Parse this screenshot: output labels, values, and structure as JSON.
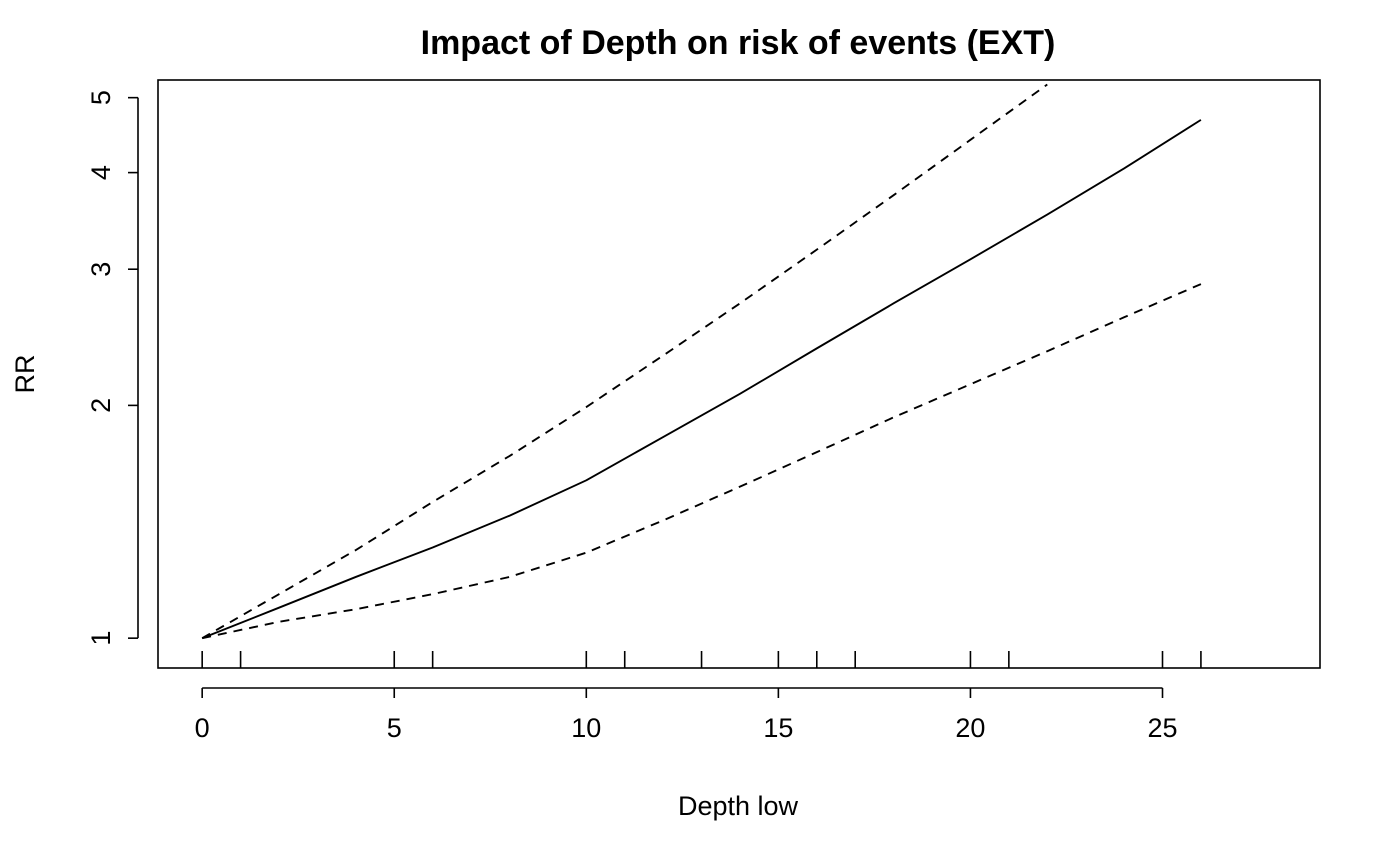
{
  "chart_data": {
    "type": "line",
    "title": "Impact of Depth on risk of events (EXT)",
    "xlabel": "Depth low",
    "ylabel": "RR",
    "xlim": [
      -1.15,
      29.1
    ],
    "ylim": [
      0.915,
      5.27
    ],
    "y_scale": "log",
    "x_ticks": [
      0,
      5,
      10,
      15,
      20,
      25
    ],
    "y_ticks": [
      1,
      2,
      3,
      4,
      5
    ],
    "grid": false,
    "legend": "none",
    "rug": [
      0,
      1,
      5,
      6,
      10,
      11,
      13,
      15,
      16,
      17,
      20,
      21,
      25,
      26
    ],
    "series": [
      {
        "role": "estimate",
        "style": "solid",
        "color": "#000000",
        "x": [
          0,
          2,
          4,
          6,
          8,
          10,
          12,
          14,
          16,
          18,
          20,
          22,
          24,
          26
        ],
        "y": [
          1.0,
          1.095,
          1.2,
          1.31,
          1.44,
          1.6,
          1.82,
          2.07,
          2.37,
          2.71,
          3.09,
          3.53,
          4.05,
          4.68
        ]
      },
      {
        "role": "upper",
        "style": "dashed",
        "color": "#000000",
        "x": [
          0,
          2,
          4,
          6,
          8,
          10,
          12,
          14,
          16,
          18,
          20,
          22
        ],
        "y": [
          1.0,
          1.14,
          1.3,
          1.5,
          1.72,
          1.99,
          2.32,
          2.71,
          3.18,
          3.74,
          4.41,
          5.2
        ]
      },
      {
        "role": "lower",
        "style": "dashed",
        "color": "#000000",
        "x": [
          0,
          2,
          4,
          6,
          8,
          10,
          12,
          14,
          16,
          18,
          20,
          22,
          24,
          26
        ],
        "y": [
          1.0,
          1.05,
          1.09,
          1.14,
          1.2,
          1.29,
          1.42,
          1.57,
          1.74,
          1.93,
          2.13,
          2.35,
          2.6,
          2.87
        ]
      }
    ]
  }
}
